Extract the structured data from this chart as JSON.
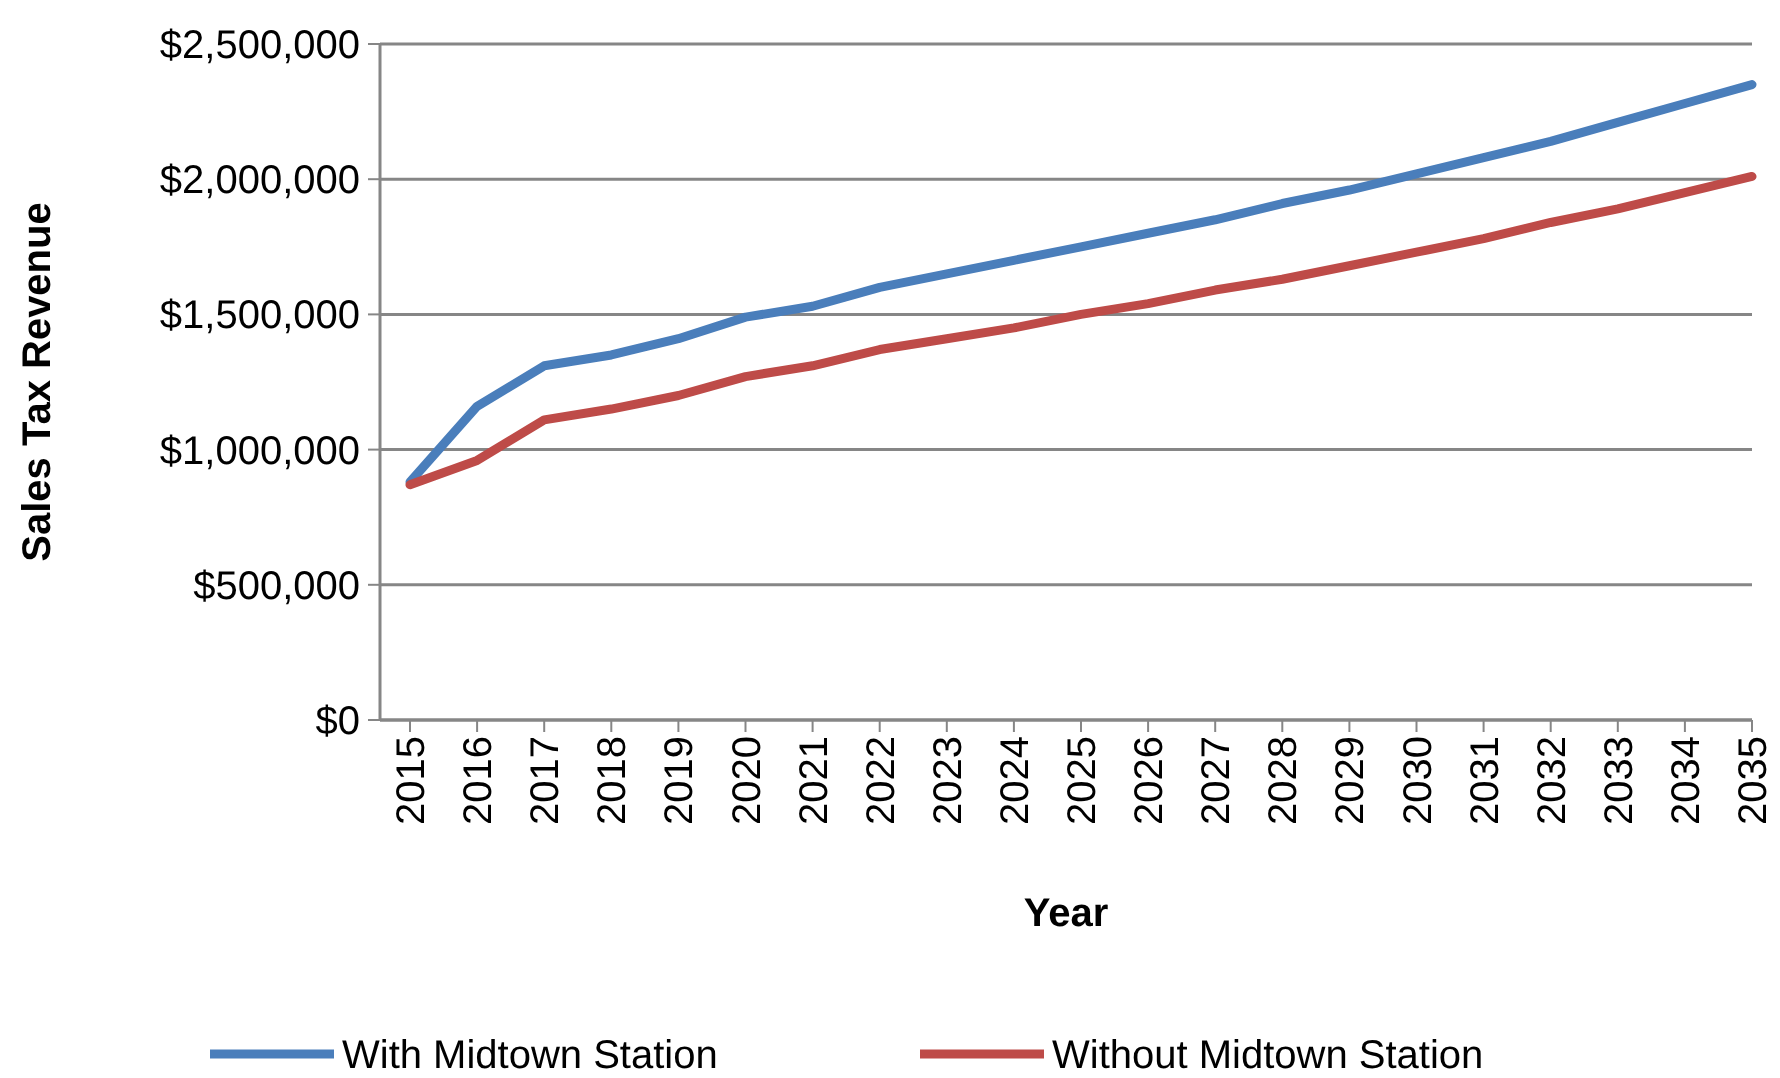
{
  "chart_data": {
    "type": "line",
    "xlabel": "Year",
    "ylabel": "Sales Tax Revenue",
    "categories": [
      "2015",
      "2016",
      "2017",
      "2018",
      "2019",
      "2020",
      "2021",
      "2022",
      "2023",
      "2024",
      "2025",
      "2026",
      "2027",
      "2028",
      "2029",
      "2030",
      "2031",
      "2032",
      "2033",
      "2034",
      "2035"
    ],
    "series": [
      {
        "name": "With Midtown Station",
        "color": "#4a7ebb",
        "values": [
          880000,
          1160000,
          1310000,
          1350000,
          1410000,
          1490000,
          1530000,
          1600000,
          1650000,
          1700000,
          1750000,
          1800000,
          1850000,
          1910000,
          1960000,
          2020000,
          2080000,
          2140000,
          2210000,
          2280000,
          2350000
        ]
      },
      {
        "name": "Without Midtown Station",
        "color": "#be4b48",
        "values": [
          870000,
          960000,
          1110000,
          1150000,
          1200000,
          1270000,
          1310000,
          1370000,
          1410000,
          1450000,
          1500000,
          1540000,
          1590000,
          1630000,
          1680000,
          1730000,
          1780000,
          1840000,
          1890000,
          1950000,
          2010000
        ]
      }
    ],
    "ylim": [
      0,
      2500000
    ],
    "yticks": [
      {
        "value": 0,
        "label": "$0"
      },
      {
        "value": 500000,
        "label": "$500,000"
      },
      {
        "value": 1000000,
        "label": "$1,000,000"
      },
      {
        "value": 1500000,
        "label": "$1,500,000"
      },
      {
        "value": 2000000,
        "label": "$2,000,000"
      },
      {
        "value": 2500000,
        "label": "$2,500,000"
      }
    ],
    "grid": "y",
    "legend": "bottom",
    "marker": "none",
    "line_style": "solid"
  }
}
